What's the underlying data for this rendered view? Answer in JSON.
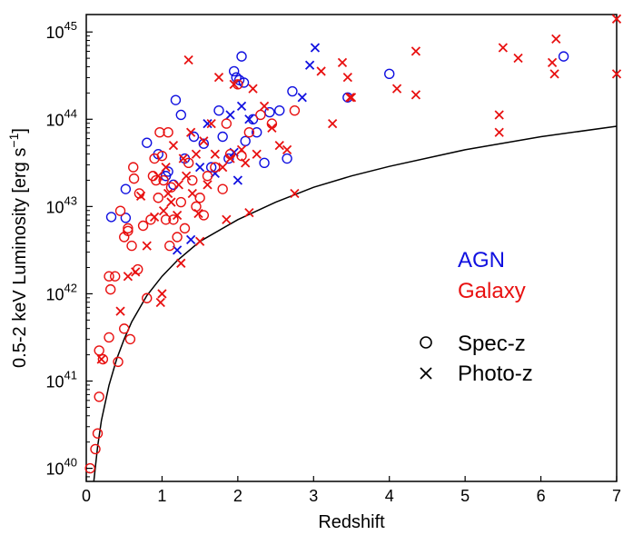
{
  "chart_data": {
    "type": "scatter",
    "title": "",
    "xlabel": "Redshift",
    "ylabel_main": "0.5-2 keV Luminosity [erg s",
    "ylabel_sup": "−1",
    "ylabel_close": "]",
    "xlim": [
      0,
      7
    ],
    "ylim_log10": [
      39.85,
      45.2
    ],
    "y_scale": "log",
    "grid": false,
    "x_ticks": [
      0,
      1,
      2,
      3,
      4,
      5,
      6,
      7
    ],
    "y_ticks": [
      {
        "base": "10",
        "exp": "40",
        "log": 40
      },
      {
        "base": "10",
        "exp": "41",
        "log": 41
      },
      {
        "base": "10",
        "exp": "42",
        "log": 42
      },
      {
        "base": "10",
        "exp": "43",
        "log": 43
      },
      {
        "base": "10",
        "exp": "44",
        "log": 44
      },
      {
        "base": "10",
        "exp": "45",
        "log": 45
      }
    ],
    "legend": {
      "placement": "right",
      "categories": [
        {
          "label": "AGN",
          "color": "#1010e0"
        },
        {
          "label": "Galaxy",
          "color": "#e81010"
        }
      ],
      "markers": [
        {
          "symbol": "O",
          "label": "Spec-z"
        },
        {
          "symbol": "X",
          "label": "Photo-z"
        }
      ]
    },
    "limit_curve": [
      [
        0.1,
        39.85
      ],
      [
        0.15,
        40.25
      ],
      [
        0.2,
        40.55
      ],
      [
        0.3,
        40.95
      ],
      [
        0.4,
        41.25
      ],
      [
        0.5,
        41.48
      ],
      [
        0.6,
        41.68
      ],
      [
        0.8,
        41.98
      ],
      [
        1.0,
        42.2
      ],
      [
        1.2,
        42.38
      ],
      [
        1.5,
        42.6
      ],
      [
        2.0,
        42.85
      ],
      [
        2.5,
        43.05
      ],
      [
        3.0,
        43.22
      ],
      [
        3.5,
        43.35
      ],
      [
        4.0,
        43.46
      ],
      [
        5.0,
        43.65
      ],
      [
        6.0,
        43.8
      ],
      [
        7.0,
        43.92
      ]
    ],
    "series": [
      {
        "name": "AGN",
        "marker": "Spec-z",
        "color": "#1010e0",
        "points": [
          [
            0.33,
            42.88
          ],
          [
            0.52,
            42.87
          ],
          [
            0.52,
            43.2
          ],
          [
            0.8,
            43.73
          ],
          [
            0.95,
            43.6
          ],
          [
            1.05,
            43.35
          ],
          [
            1.08,
            43.4
          ],
          [
            1.15,
            43.25
          ],
          [
            1.18,
            44.22
          ],
          [
            1.25,
            44.05
          ],
          [
            1.3,
            43.55
          ],
          [
            1.42,
            43.8
          ],
          [
            1.55,
            43.72
          ],
          [
            1.65,
            43.45
          ],
          [
            1.75,
            44.1
          ],
          [
            1.8,
            43.8
          ],
          [
            1.88,
            43.55
          ],
          [
            1.95,
            44.55
          ],
          [
            1.98,
            44.48
          ],
          [
            2.02,
            44.45
          ],
          [
            2.05,
            44.72
          ],
          [
            2.08,
            44.42
          ],
          [
            2.1,
            43.75
          ],
          [
            2.2,
            44.0
          ],
          [
            2.25,
            43.85
          ],
          [
            2.35,
            43.5
          ],
          [
            2.42,
            44.08
          ],
          [
            2.55,
            44.1
          ],
          [
            2.65,
            43.55
          ],
          [
            2.72,
            44.32
          ],
          [
            3.45,
            44.25
          ],
          [
            4.0,
            44.52
          ],
          [
            6.3,
            44.72
          ]
        ]
      },
      {
        "name": "AGN",
        "marker": "Photo-z",
        "color": "#1010e0",
        "points": [
          [
            1.2,
            42.5
          ],
          [
            1.38,
            42.62
          ],
          [
            1.5,
            43.45
          ],
          [
            1.6,
            43.95
          ],
          [
            1.7,
            43.38
          ],
          [
            1.9,
            44.05
          ],
          [
            1.95,
            43.62
          ],
          [
            2.0,
            43.3
          ],
          [
            2.05,
            44.15
          ],
          [
            2.15,
            44.0
          ],
          [
            2.85,
            44.25
          ],
          [
            2.95,
            44.62
          ],
          [
            3.02,
            44.82
          ]
        ]
      },
      {
        "name": "Galaxy",
        "marker": "Spec-z",
        "color": "#e81010",
        "points": [
          [
            0.05,
            40.0
          ],
          [
            0.12,
            40.22
          ],
          [
            0.15,
            40.4
          ],
          [
            0.17,
            40.82
          ],
          [
            0.17,
            41.35
          ],
          [
            0.22,
            41.25
          ],
          [
            0.3,
            41.5
          ],
          [
            0.3,
            42.2
          ],
          [
            0.32,
            42.05
          ],
          [
            0.38,
            42.2
          ],
          [
            0.42,
            41.22
          ],
          [
            0.45,
            42.95
          ],
          [
            0.5,
            41.6
          ],
          [
            0.5,
            42.65
          ],
          [
            0.55,
            42.75
          ],
          [
            0.55,
            42.72
          ],
          [
            0.58,
            41.48
          ],
          [
            0.6,
            42.55
          ],
          [
            0.62,
            43.45
          ],
          [
            0.63,
            43.32
          ],
          [
            0.68,
            42.28
          ],
          [
            0.7,
            43.15
          ],
          [
            0.75,
            42.78
          ],
          [
            0.8,
            41.95
          ],
          [
            0.85,
            42.85
          ],
          [
            0.88,
            43.35
          ],
          [
            0.9,
            43.55
          ],
          [
            0.92,
            43.3
          ],
          [
            0.95,
            43.1
          ],
          [
            0.97,
            43.85
          ],
          [
            1.0,
            43.58
          ],
          [
            1.02,
            43.3
          ],
          [
            1.05,
            42.85
          ],
          [
            1.08,
            43.85
          ],
          [
            1.1,
            42.55
          ],
          [
            1.12,
            43.22
          ],
          [
            1.15,
            42.85
          ],
          [
            1.2,
            42.65
          ],
          [
            1.25,
            43.05
          ],
          [
            1.3,
            42.75
          ],
          [
            1.35,
            43.5
          ],
          [
            1.4,
            43.3
          ],
          [
            1.45,
            43.0
          ],
          [
            1.5,
            43.1
          ],
          [
            1.55,
            42.9
          ],
          [
            1.6,
            43.35
          ],
          [
            1.7,
            43.45
          ],
          [
            1.8,
            43.2
          ],
          [
            1.85,
            43.95
          ],
          [
            1.9,
            43.6
          ],
          [
            2.0,
            44.4
          ],
          [
            2.05,
            43.58
          ],
          [
            2.15,
            43.85
          ],
          [
            2.3,
            44.05
          ],
          [
            2.45,
            43.95
          ],
          [
            2.75,
            44.1
          ]
        ]
      },
      {
        "name": "Galaxy",
        "marker": "Photo-z",
        "color": "#e81010",
        "points": [
          [
            0.2,
            41.25
          ],
          [
            0.45,
            41.8
          ],
          [
            0.55,
            42.2
          ],
          [
            0.65,
            42.25
          ],
          [
            0.72,
            43.12
          ],
          [
            0.8,
            42.55
          ],
          [
            0.9,
            42.88
          ],
          [
            0.95,
            43.35
          ],
          [
            0.98,
            41.9
          ],
          [
            1.0,
            42.0
          ],
          [
            1.02,
            42.95
          ],
          [
            1.05,
            43.45
          ],
          [
            1.08,
            43.15
          ],
          [
            1.12,
            43.05
          ],
          [
            1.15,
            43.7
          ],
          [
            1.2,
            42.9
          ],
          [
            1.22,
            43.25
          ],
          [
            1.25,
            42.35
          ],
          [
            1.28,
            43.55
          ],
          [
            1.32,
            43.35
          ],
          [
            1.35,
            44.68
          ],
          [
            1.38,
            43.85
          ],
          [
            1.4,
            43.15
          ],
          [
            1.45,
            43.6
          ],
          [
            1.48,
            42.92
          ],
          [
            1.5,
            42.6
          ],
          [
            1.55,
            43.75
          ],
          [
            1.6,
            43.25
          ],
          [
            1.65,
            43.95
          ],
          [
            1.7,
            43.6
          ],
          [
            1.75,
            44.48
          ],
          [
            1.8,
            43.45
          ],
          [
            1.85,
            42.85
          ],
          [
            1.9,
            43.55
          ],
          [
            1.95,
            44.4
          ],
          [
            2.05,
            43.65
          ],
          [
            2.1,
            43.5
          ],
          [
            2.15,
            42.93
          ],
          [
            2.2,
            44.35
          ],
          [
            2.25,
            43.6
          ],
          [
            2.35,
            44.15
          ],
          [
            2.45,
            43.9
          ],
          [
            2.55,
            43.7
          ],
          [
            2.65,
            43.65
          ],
          [
            2.75,
            43.15
          ],
          [
            3.1,
            44.55
          ],
          [
            3.25,
            43.95
          ],
          [
            3.38,
            44.65
          ],
          [
            3.45,
            44.48
          ],
          [
            3.48,
            44.25
          ],
          [
            3.5,
            44.25
          ],
          [
            4.1,
            44.35
          ],
          [
            4.35,
            44.78
          ],
          [
            4.35,
            44.28
          ],
          [
            5.45,
            44.05
          ],
          [
            5.45,
            43.85
          ],
          [
            5.5,
            44.82
          ],
          [
            5.7,
            44.7
          ],
          [
            6.15,
            44.65
          ],
          [
            6.18,
            44.52
          ],
          [
            6.2,
            44.92
          ],
          [
            7.0,
            45.15
          ],
          [
            7.0,
            44.52
          ]
        ]
      }
    ]
  }
}
